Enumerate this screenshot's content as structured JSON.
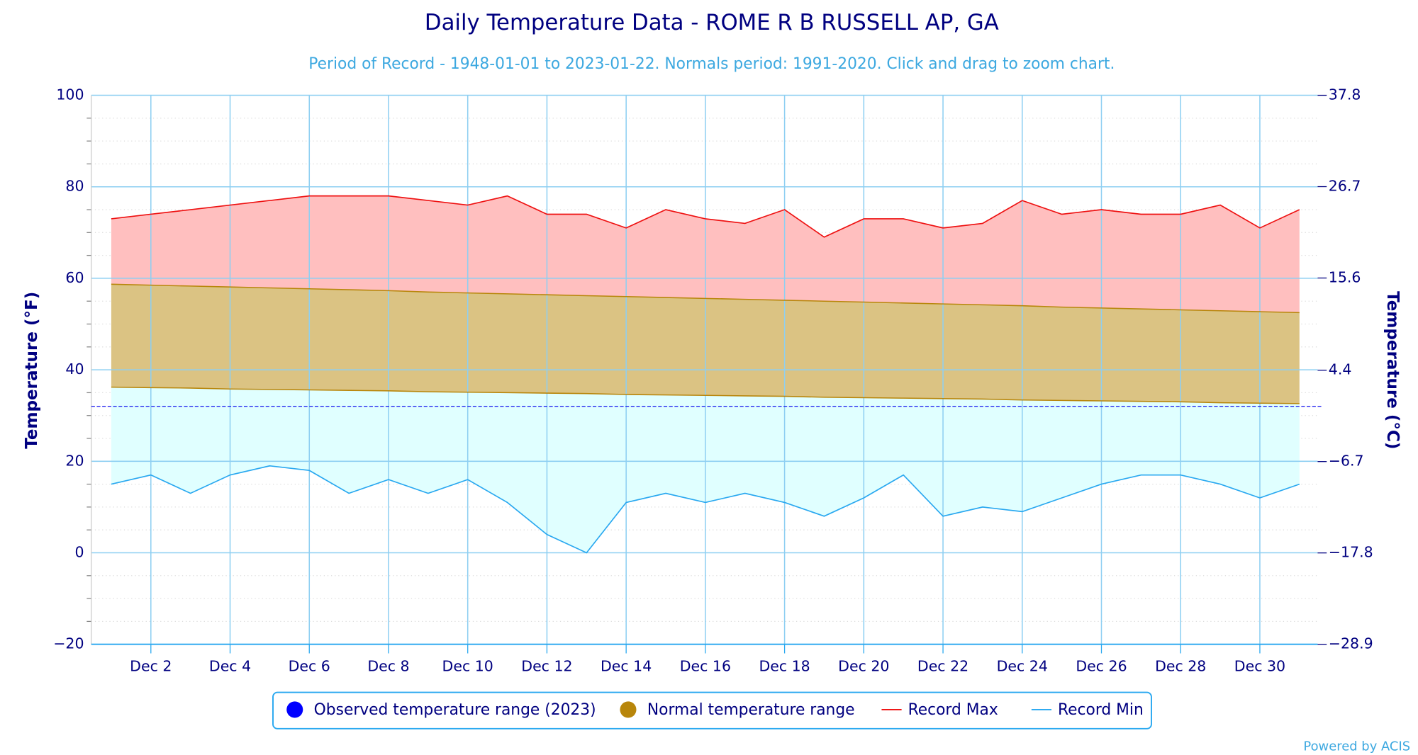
{
  "chart_data": {
    "type": "range-area",
    "title": "Daily Temperature Data - ROME R B RUSSELL AP, GA",
    "subtitle": "Period of Record - 1948-01-01 to 2023-01-22. Normals period: 1991-2020. Click and drag to zoom chart.",
    "ylabel": "Temperature (°F)",
    "y2label": "Temperature (°C)",
    "credit": "Powered by ACIS",
    "categories": [
      null,
      "Dec 2",
      null,
      "Dec 4",
      null,
      "Dec 6",
      null,
      "Dec 8",
      null,
      "Dec 10",
      null,
      "Dec 12",
      null,
      "Dec 14",
      null,
      "Dec 16",
      null,
      "Dec 18",
      null,
      "Dec 20",
      null,
      "Dec 22",
      null,
      "Dec 24",
      null,
      "Dec 26",
      null,
      "Dec 28",
      null,
      "Dec 30",
      null
    ],
    "ylim": [
      -20,
      100
    ],
    "yticks": [
      {
        "value": -20,
        "label": "−20"
      },
      0,
      20,
      40,
      60,
      80,
      100
    ],
    "y2lim": [
      -28.9,
      37.8
    ],
    "y2ticks": [
      {
        "value": -28.9,
        "label": "−28.9"
      },
      {
        "value": -17.8,
        "label": "−17.8"
      },
      {
        "value": -6.7,
        "label": "−6.7"
      },
      4.4,
      15.6,
      26.7,
      37.8
    ],
    "freeze_line": 32,
    "grid": true,
    "legend": "bottom",
    "series": [
      {
        "name": "Observed temperature range (2023)",
        "color": "#0000ff"
      },
      {
        "name": "Normal temperature range",
        "color": "#b8860b",
        "fill": "#dbc383",
        "values": [
          58.7,
          58.5,
          58.3,
          58.1,
          57.9,
          57.7,
          57.5,
          57.3,
          57.0,
          56.8,
          56.6,
          56.4,
          56.2,
          56.0,
          55.8,
          55.6,
          55.4,
          55.2,
          55.0,
          54.8,
          54.6,
          54.4,
          54.2,
          54.0,
          53.7,
          53.5,
          53.3,
          53.1,
          52.9,
          52.7,
          52.5
        ],
        "low": [
          36.2,
          36.1,
          36.0,
          35.8,
          35.7,
          35.6,
          35.5,
          35.4,
          35.2,
          35.1,
          35.0,
          34.9,
          34.8,
          34.6,
          34.5,
          34.4,
          34.3,
          34.2,
          34.0,
          33.9,
          33.8,
          33.7,
          33.6,
          33.4,
          33.3,
          33.2,
          33.1,
          33.0,
          32.8,
          32.7,
          32.6
        ]
      },
      {
        "name": "Record Max",
        "color": "#ee1111",
        "fill": "#ffbfbf",
        "values": [
          73,
          74,
          75,
          76,
          77,
          78,
          78,
          78,
          77,
          76,
          78,
          74,
          74,
          71,
          75,
          73,
          72,
          75,
          69,
          73,
          73,
          71,
          72,
          77,
          74,
          75,
          74,
          74,
          76,
          71,
          75
        ]
      },
      {
        "name": "Record Min",
        "color": "#29a8f0",
        "fill": "#e0ffff",
        "values": [
          15,
          17,
          13,
          17,
          19,
          18,
          13,
          16,
          13,
          16,
          11,
          4,
          0,
          11,
          13,
          11,
          13,
          11,
          8,
          12,
          17,
          8,
          10,
          9,
          12,
          15,
          17,
          17,
          15,
          12,
          15
        ]
      }
    ]
  }
}
